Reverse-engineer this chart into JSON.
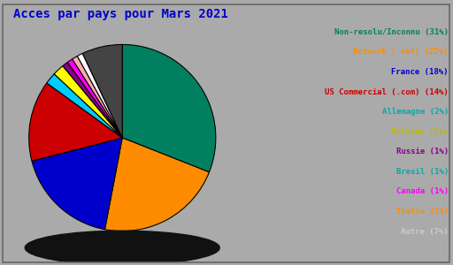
{
  "title": "Acces par pays pour Mars 2021",
  "legend_labels": [
    "Non-resolu/Inconnu (31%)",
    "Network (.net) (22%)",
    "France (18%)",
    "US Commercial (.com) (14%)",
    "Allemagne (2%)",
    "Pologne (2%)",
    "Russie (1%)",
    "Bresil (1%)",
    "Canada (1%)",
    "Italie (1%)",
    "Autre (7%)"
  ],
  "legend_text_colors": [
    "#008060",
    "#FF8C00",
    "#0000CC",
    "#CC0000",
    "#00AAAA",
    "#BBBB00",
    "#880088",
    "#00AAAA",
    "#FF00FF",
    "#FF8C00",
    "#CCCCCC"
  ],
  "plot_values": [
    31,
    22,
    18,
    14,
    2,
    2,
    1,
    1,
    1,
    1,
    7
  ],
  "plot_colors": [
    "#008060",
    "#FF8C00",
    "#0000CC",
    "#CC0000",
    "#00CCFF",
    "#FFFF00",
    "#880088",
    "#FF00FF",
    "#FFAAAA",
    "#FFFFFF",
    "#444444"
  ],
  "startangle": 90,
  "background_color": "#AAAAAA",
  "title_color": "#0000CC",
  "title_fontsize": 10,
  "shadow_color": "#111111"
}
